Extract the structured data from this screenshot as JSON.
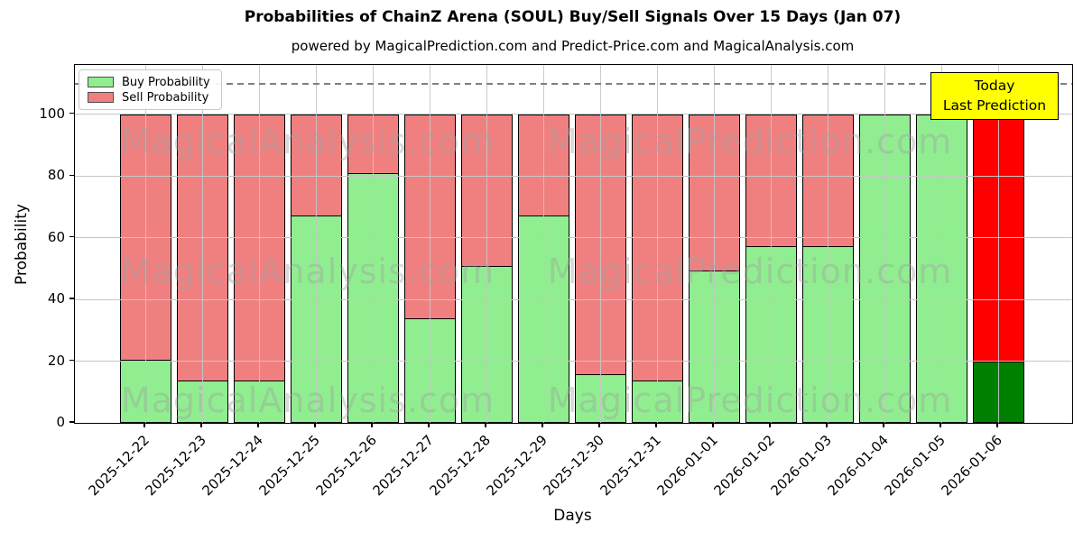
{
  "header": {
    "title": "Probabilities of ChainZ Arena (SOUL) Buy/Sell Signals Over 15 Days (Jan 07)",
    "subtitle": "powered by MagicalPrediction.com and Predict-Price.com and MagicalAnalysis.com"
  },
  "legend": {
    "items": [
      {
        "label": "Buy Probability",
        "color": "#90ee90"
      },
      {
        "label": "Sell Probability",
        "color": "#f08080"
      }
    ]
  },
  "annotation_box": {
    "lines": [
      "Today",
      "Last Prediction"
    ],
    "bg_color": "#ffff00",
    "border_color": "#000000"
  },
  "watermarks": {
    "left_text": "MagicalAnalysis.com",
    "right_text": "MagicalPrediction.com"
  },
  "chart_data": {
    "type": "bar",
    "stacked": true,
    "title": "Probabilities of ChainZ Arena (SOUL) Buy/Sell Signals Over 15 Days (Jan 07)",
    "xlabel": "Days",
    "ylabel": "Probability",
    "categories": [
      "2025-12-22",
      "2025-12-23",
      "2025-12-24",
      "2025-12-25",
      "2025-12-26",
      "2025-12-27",
      "2025-12-28",
      "2025-12-29",
      "2025-12-30",
      "2025-12-31",
      "2026-01-01",
      "2026-01-02",
      "2026-01-03",
      "2026-01-04",
      "2026-01-05",
      "2026-01-06"
    ],
    "series": [
      {
        "name": "Buy Probability",
        "color": "#90ee90",
        "values": [
          20.5,
          14,
          14,
          67.5,
          81,
          34,
          51,
          67.5,
          16,
          14,
          49.5,
          57.5,
          57.5,
          100,
          100,
          20
        ]
      },
      {
        "name": "Sell Probability",
        "color": "#f08080",
        "values": [
          79.5,
          86,
          86,
          32.5,
          19,
          66,
          49,
          32.5,
          84,
          86,
          50.5,
          42.5,
          42.5,
          0,
          0,
          80
        ]
      }
    ],
    "last_bar_override": {
      "category": "2026-01-06",
      "buy_color": "#008000",
      "sell_color": "#ff0000"
    },
    "bar_edge_color": "#000000",
    "yticks": [
      0,
      20,
      40,
      60,
      80,
      100
    ],
    "ylim": [
      0,
      116
    ],
    "dashed_reference_line_y": 110,
    "grid": true,
    "legend_position": "upper left"
  }
}
